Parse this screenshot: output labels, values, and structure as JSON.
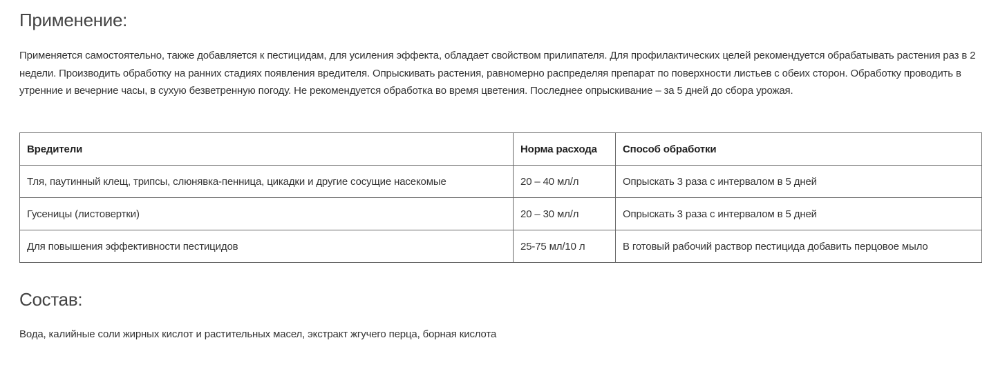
{
  "application": {
    "heading": "Применение:",
    "paragraph": "Применяется самостоятельно, также добавляется к пестицидам, для усиления эффекта, обладает свойством прилипателя. Для профилактических целей рекомендуется обрабатывать растения раз в 2 недели. Производить обработку на ранних стадиях появления вредителя. Опрыскивать растения, равномерно распределяя препарат по поверхности листьев с обеих сторон. Обработку проводить в утренние и вечерние часы, в сухую безветренную погоду. Не рекомендуется обработка во время цветения. Последнее опрыскивание – за 5 дней до сбора урожая."
  },
  "table": {
    "headers": [
      "Вредители",
      "Норма расхода",
      "Способ обработки"
    ],
    "rows": [
      [
        "Тля, паутинный клещ, трипсы, слюнявка-пенница, цикадки и другие сосущие насекомые",
        "20 – 40 мл/л",
        "Опрыскать 3 раза с интервалом в 5 дней"
      ],
      [
        "Гусеницы (листовертки)",
        "20 – 30 мл/л",
        "Опрыскать 3 раза с интервалом в 5 дней"
      ],
      [
        "Для повышения эффективности пестицидов",
        "25-75 мл/10 л",
        "В готовый рабочий раствор пестицида добавить перцовое мыло"
      ]
    ]
  },
  "composition": {
    "heading": "Состав:",
    "paragraph": "Вода, калийные соли жирных кислот и растительных масел, экстракт жгучего перца, борная кислота"
  }
}
